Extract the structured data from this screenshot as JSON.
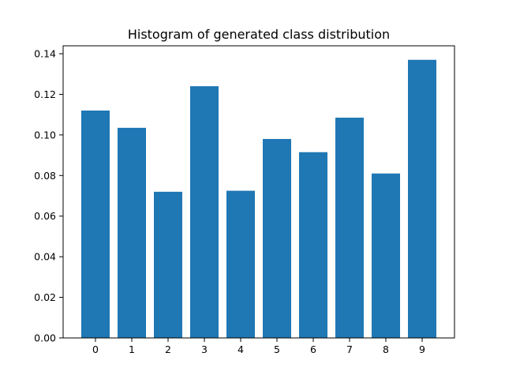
{
  "chart_data": {
    "type": "bar",
    "title": "Histogram of generated class distribution",
    "xlabel": "",
    "ylabel": "",
    "categories": [
      "0",
      "1",
      "2",
      "3",
      "4",
      "5",
      "6",
      "7",
      "8",
      "9"
    ],
    "values": [
      0.112,
      0.1035,
      0.072,
      0.124,
      0.0725,
      0.098,
      0.0915,
      0.1085,
      0.081,
      0.137
    ],
    "ylim": [
      0,
      0.1439
    ],
    "yticks": [
      0.0,
      0.02,
      0.04,
      0.06,
      0.08,
      0.1,
      0.12,
      0.14
    ],
    "ytick_labels": [
      "0.00",
      "0.02",
      "0.04",
      "0.06",
      "0.08",
      "0.10",
      "0.12",
      "0.14"
    ],
    "bar_color": "#1f77b4",
    "grid": false,
    "legend": "none"
  }
}
